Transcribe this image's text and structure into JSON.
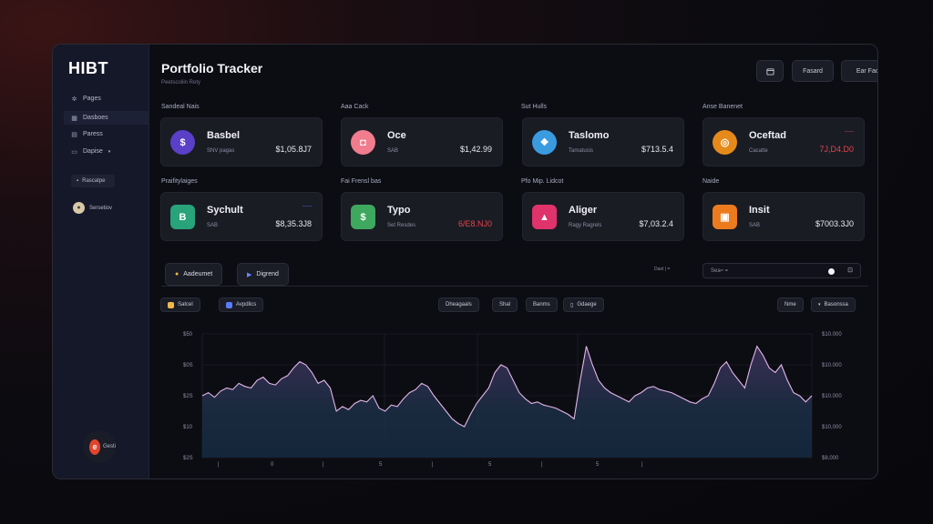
{
  "sidebar": {
    "logo": "HIBT",
    "items": [
      {
        "label": "Pages",
        "icon": "sparkle-icon"
      },
      {
        "label": "Dasboes",
        "icon": "grid-icon"
      },
      {
        "label": "Paress",
        "icon": "table-icon"
      },
      {
        "label": "Dapise",
        "icon": "document-icon"
      }
    ],
    "button_label": "Rascatpe",
    "user_label": "Sersetiov",
    "bottom_label": "Gesti"
  },
  "header": {
    "title": "Portfolio Tracker",
    "subtitle": "Peetscoliin Rety",
    "buttons": {
      "calendar_icon": "calendar-icon",
      "fasard": "Fasard",
      "primary": "Ear Facimum Haee"
    }
  },
  "sections": [
    {
      "label": "Sandeal Nais",
      "cards": [
        {
          "name": "Basbel",
          "sub": "SNV pagas",
          "value": "$1,05.8J7",
          "tag": "",
          "coin_color": "#5a3fc9",
          "glyph": "$"
        },
        {
          "name": "Sychult",
          "sub": "SAB",
          "value": "$8,35.3J8",
          "tag": "——",
          "tag_color": "blue",
          "coin_color": "#28a37a",
          "glyph": "B"
        }
      ]
    },
    {
      "label": "Aaa Cack",
      "cards": [
        {
          "name": "Oce",
          "sub": "SAB",
          "value": "$1,42.99",
          "tag": "",
          "coin_color": "#f07c8e",
          "glyph": "◘"
        },
        {
          "name": "Typo",
          "sub": "Set Resdes",
          "value": "6/E8.NJ0",
          "negative": true,
          "tag": "",
          "coin_color": "#3fa85f",
          "glyph": "$"
        }
      ]
    },
    {
      "label": "Sut Hulls",
      "cards": [
        {
          "name": "Taslomo",
          "sub": "Tamatusis",
          "value": "$713.5.4",
          "tag": "",
          "coin_color": "#3a9be0",
          "glyph": "❖"
        },
        {
          "name": "Aliger",
          "sub": "Ragy Ragrels",
          "value": "$7,03.2.4",
          "tag": "",
          "coin_color": "#e0336b",
          "glyph": "▲"
        }
      ]
    },
    {
      "label": "Anse Banenet",
      "cards": [
        {
          "name": "Oceftad",
          "sub": "Cacatte",
          "value": "7J,D4.D0",
          "negative": true,
          "tag": "——",
          "tag_color": "red",
          "coin_color": "#e58a1a",
          "glyph": "◎"
        },
        {
          "name": "Insit",
          "sub": "SAB",
          "value": "$7003.3J0",
          "tag": "",
          "coin_color": "#ec7b1e",
          "glyph": "▣"
        }
      ]
    }
  ],
  "row2_labels": [
    "Praifitylaiges",
    "Fai Frensl bas",
    "Pfo Mip. Lidcot",
    "Naide"
  ],
  "tabs": [
    {
      "label": "Aadeumet",
      "icon": "coin-icon"
    },
    {
      "label": "Digrend",
      "icon": "play-icon"
    }
  ],
  "search": {
    "label": "Daxt | =",
    "placeholder": "Sea≈ ="
  },
  "chips": [
    {
      "label": "Satcel",
      "icon": "bolt-icon"
    },
    {
      "label": "Avpdlics",
      "icon": "square-icon"
    },
    {
      "label": "Dheagaals",
      "icon": "none"
    },
    {
      "label": "Shal",
      "icon": "none"
    },
    {
      "label": "Banms",
      "icon": "none"
    },
    {
      "label": "Gdaege",
      "icon": "file-icon"
    },
    {
      "label": "Nme",
      "icon": "none"
    },
    {
      "label": "Basonssa",
      "icon": "chevron-down-icon"
    }
  ],
  "chart_data": {
    "type": "area",
    "y_left_labels": [
      "$50",
      "$0S",
      "$2S",
      "$10",
      "$2S"
    ],
    "y_right_labels": [
      "$10.000",
      "$10.000",
      "$10.000",
      "$10,000",
      "$8,000"
    ],
    "x_labels": [
      "",
      "0",
      "",
      "5",
      "",
      "5",
      "",
      "5",
      ""
    ],
    "values": [
      40,
      42,
      39,
      43,
      45,
      44,
      48,
      46,
      45,
      50,
      52,
      48,
      47,
      51,
      53,
      58,
      62,
      60,
      55,
      48,
      50,
      45,
      30,
      33,
      31,
      35,
      37,
      36,
      40,
      32,
      30,
      34,
      33,
      38,
      42,
      44,
      48,
      46,
      40,
      35,
      30,
      25,
      22,
      20,
      28,
      35,
      40,
      45,
      55,
      60,
      58,
      50,
      42,
      38,
      35,
      36,
      34,
      33,
      32,
      30,
      28,
      25,
      50,
      72,
      60,
      50,
      45,
      42,
      40,
      38,
      36,
      40,
      42,
      45,
      46,
      44,
      43,
      42,
      40,
      38,
      36,
      35,
      38,
      40,
      48,
      58,
      62,
      55,
      50,
      45,
      60,
      72,
      66,
      58,
      55,
      60,
      50,
      42,
      40,
      36,
      40
    ]
  }
}
